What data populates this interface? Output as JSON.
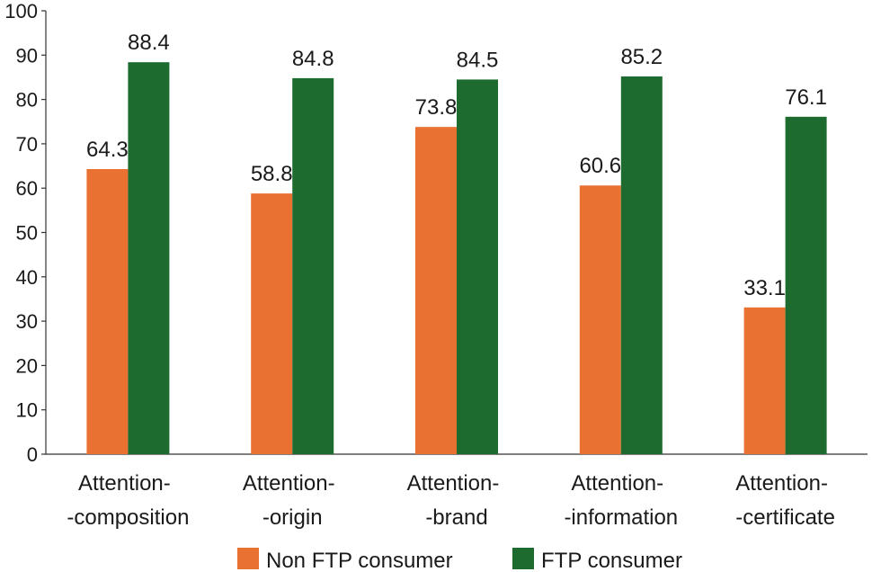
{
  "chart_data": {
    "type": "bar",
    "categories": [
      [
        "Attention-",
        "-composition"
      ],
      [
        "Attention-",
        "-origin"
      ],
      [
        "Attention-",
        "-brand"
      ],
      [
        "Attention-",
        "-information"
      ],
      [
        "Attention-",
        "-certificate"
      ]
    ],
    "series": [
      {
        "name": "Non FTP consumer",
        "color": "#e97132",
        "values": [
          64.3,
          58.8,
          73.8,
          60.6,
          33.1
        ]
      },
      {
        "name": "FTP consumer",
        "color": "#1e6b2f",
        "values": [
          88.4,
          84.8,
          84.5,
          85.2,
          76.1
        ]
      }
    ],
    "ylim": [
      0,
      100
    ],
    "yticks": [
      0,
      10,
      20,
      30,
      40,
      50,
      60,
      70,
      80,
      90,
      100
    ],
    "grid": false,
    "legend": "bottom"
  }
}
